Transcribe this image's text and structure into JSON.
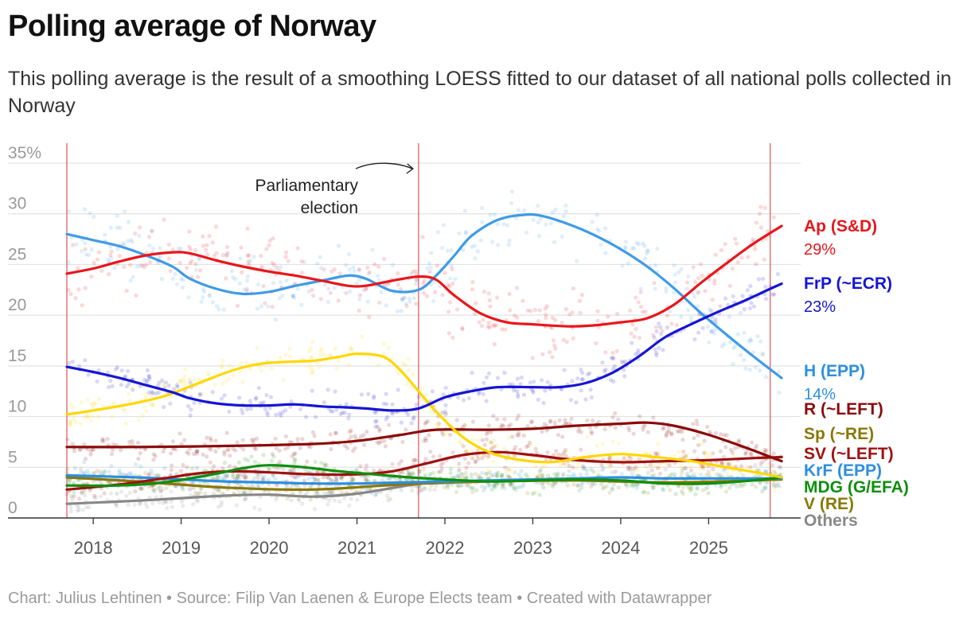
{
  "header": {
    "title": "Polling average of Norway",
    "subtitle": "This polling average is the result of a smoothing LOESS fitted to our dataset of all national polls collected in Norway"
  },
  "footer": {
    "text": "Chart: Julius Lehtinen • Source: Filip Van Laenen & Europe Elects team • Created with Datawrapper"
  },
  "chart_data": {
    "type": "line",
    "xlim": [
      2017.7,
      2025.92
    ],
    "ylim": [
      0,
      35
    ],
    "y_ticks": [
      0,
      5,
      10,
      15,
      20,
      25,
      30,
      35
    ],
    "y_tick_labels": [
      "0",
      "5",
      "10",
      "15",
      "20",
      "25",
      "30",
      "35%"
    ],
    "x_ticks": [
      2018,
      2019,
      2020,
      2021,
      2022,
      2023,
      2024,
      2025
    ],
    "x_tick_labels": [
      "2018",
      "2019",
      "2020",
      "2021",
      "2022",
      "2023",
      "2024",
      "2025"
    ],
    "grid": true,
    "vlines": [
      2017.7,
      2021.7,
      2025.7
    ],
    "annotation": {
      "lines": [
        "Parliamentary",
        "election"
      ],
      "x": 2021.7
    },
    "series": [
      {
        "name": "Ap (S&D)",
        "value_label": "29%",
        "color": "#e8161b",
        "x": [
          2017.7,
          2018.0,
          2018.3,
          2018.6,
          2018.9,
          2019.1,
          2019.4,
          2019.7,
          2020.0,
          2020.3,
          2020.6,
          2020.9,
          2021.1,
          2021.4,
          2021.7,
          2021.9,
          2022.1,
          2022.4,
          2022.7,
          2023.0,
          2023.4,
          2023.7,
          2024.0,
          2024.3,
          2024.6,
          2024.9,
          2025.2,
          2025.5,
          2025.83
        ],
        "y": [
          24.1,
          24.6,
          25.3,
          25.9,
          26.2,
          26.1,
          25.4,
          24.8,
          24.3,
          23.9,
          23.4,
          22.9,
          22.9,
          23.4,
          23.8,
          23.5,
          22.0,
          20.2,
          19.3,
          19.1,
          18.9,
          19.0,
          19.3,
          19.7,
          21.0,
          23.1,
          25.1,
          27.0,
          28.8
        ]
      },
      {
        "name": "FrP (~ECR)",
        "value_label": "23%",
        "color": "#1515d4",
        "x": [
          2017.7,
          2018.0,
          2018.3,
          2018.6,
          2018.9,
          2019.1,
          2019.4,
          2019.7,
          2020.0,
          2020.3,
          2020.6,
          2020.9,
          2021.1,
          2021.4,
          2021.7,
          2022.0,
          2022.3,
          2022.6,
          2023.0,
          2023.3,
          2023.6,
          2023.9,
          2024.2,
          2024.5,
          2024.8,
          2025.1,
          2025.4,
          2025.7,
          2025.83
        ],
        "y": [
          14.9,
          14.4,
          13.8,
          13.1,
          12.4,
          11.8,
          11.3,
          11.1,
          11.1,
          11.2,
          11.0,
          10.9,
          10.8,
          10.6,
          10.8,
          11.9,
          12.5,
          12.9,
          12.9,
          12.9,
          13.3,
          14.3,
          15.9,
          17.8,
          19.1,
          20.3,
          21.4,
          22.6,
          23.1
        ]
      },
      {
        "name": "H (EPP)",
        "value_label": "14%",
        "color": "#3f9be8",
        "x": [
          2017.7,
          2018.0,
          2018.3,
          2018.6,
          2018.9,
          2019.1,
          2019.4,
          2019.7,
          2020.0,
          2020.3,
          2020.6,
          2020.9,
          2021.1,
          2021.4,
          2021.7,
          2021.9,
          2022.1,
          2022.3,
          2022.6,
          2022.9,
          2023.1,
          2023.4,
          2023.7,
          2024.0,
          2024.3,
          2024.6,
          2024.9,
          2025.2,
          2025.5,
          2025.83
        ],
        "y": [
          28.0,
          27.4,
          26.8,
          25.9,
          24.8,
          23.6,
          22.6,
          22.1,
          22.3,
          22.9,
          23.4,
          23.9,
          23.6,
          22.4,
          22.5,
          23.9,
          25.8,
          27.8,
          29.4,
          29.9,
          29.8,
          29.0,
          27.9,
          26.5,
          24.8,
          22.7,
          20.3,
          18.1,
          16.0,
          13.8
        ]
      },
      {
        "name": "R (~LEFT)",
        "value_label": "",
        "color": "#8b0a0a",
        "x": [
          2017.7,
          2018.5,
          2019.5,
          2020.5,
          2021.0,
          2021.5,
          2021.9,
          2022.5,
          2023.0,
          2023.5,
          2024.0,
          2024.3,
          2024.6,
          2025.0,
          2025.4,
          2025.83
        ],
        "y": [
          7.0,
          7.0,
          7.1,
          7.3,
          7.6,
          8.2,
          8.7,
          8.7,
          8.8,
          9.1,
          9.3,
          9.4,
          9.1,
          8.2,
          7.0,
          5.6
        ]
      },
      {
        "name": "Sp (~RE)",
        "value_label": "",
        "color": "#ffd700",
        "x": [
          2017.7,
          2018.0,
          2018.4,
          2018.8,
          2019.2,
          2019.6,
          2019.9,
          2020.2,
          2020.5,
          2020.8,
          2021.0,
          2021.3,
          2021.5,
          2021.7,
          2021.9,
          2022.2,
          2022.5,
          2022.8,
          2023.2,
          2023.6,
          2024.0,
          2024.4,
          2024.8,
          2025.2,
          2025.6,
          2025.83
        ],
        "y": [
          10.2,
          10.6,
          11.2,
          12.0,
          13.3,
          14.6,
          15.2,
          15.4,
          15.5,
          15.9,
          16.2,
          15.9,
          14.5,
          12.5,
          10.5,
          8.0,
          6.5,
          5.8,
          5.5,
          6.0,
          6.3,
          6.0,
          5.6,
          5.0,
          4.4,
          4.0
        ]
      },
      {
        "name": "SV (~LEFT)",
        "value_label": "",
        "color": "#a01010",
        "x": [
          2017.7,
          2018.3,
          2018.8,
          2019.2,
          2019.6,
          2020.0,
          2020.5,
          2021.0,
          2021.4,
          2021.8,
          2022.2,
          2022.6,
          2023.0,
          2023.5,
          2024.0,
          2024.5,
          2025.0,
          2025.5,
          2025.83
        ],
        "y": [
          2.8,
          3.3,
          3.9,
          4.4,
          4.6,
          4.5,
          4.3,
          4.3,
          4.6,
          5.4,
          6.2,
          6.5,
          6.2,
          5.7,
          5.5,
          5.6,
          5.7,
          5.9,
          6.0
        ]
      },
      {
        "name": "KrF (EPP)",
        "value_label": "",
        "color": "#2b8fe0",
        "x": [
          2017.7,
          2018.5,
          2019.0,
          2019.5,
          2020.0,
          2020.5,
          2021.0,
          2021.5,
          2022.0,
          2022.5,
          2023.0,
          2023.5,
          2024.0,
          2024.5,
          2025.0,
          2025.5,
          2025.83
        ],
        "y": [
          4.2,
          4.0,
          3.8,
          3.6,
          3.5,
          3.4,
          3.4,
          3.5,
          3.6,
          3.7,
          3.8,
          3.9,
          4.0,
          3.9,
          3.9,
          3.9,
          3.9
        ]
      },
      {
        "name": "MDG (G/EFA)",
        "value_label": "",
        "color": "#0e8e0e",
        "x": [
          2017.7,
          2018.3,
          2018.8,
          2019.3,
          2019.7,
          2020.0,
          2020.4,
          2020.8,
          2021.2,
          2021.6,
          2022.0,
          2022.5,
          2023.0,
          2023.5,
          2024.0,
          2024.5,
          2025.0,
          2025.5,
          2025.83
        ],
        "y": [
          3.2,
          3.2,
          3.5,
          4.2,
          4.9,
          5.2,
          5.0,
          4.6,
          4.3,
          4.0,
          3.8,
          3.6,
          3.7,
          3.8,
          3.7,
          3.4,
          3.4,
          3.7,
          4.0
        ]
      },
      {
        "name": "V (RE)",
        "value_label": "",
        "color": "#8a7808",
        "x": [
          2017.7,
          2018.5,
          2019.5,
          2020.5,
          2021.5,
          2022.5,
          2023.5,
          2024.5,
          2025.5,
          2025.83
        ],
        "y": [
          4.0,
          3.6,
          3.0,
          2.8,
          3.3,
          3.6,
          3.7,
          3.5,
          3.7,
          3.8
        ]
      },
      {
        "name": "Others",
        "value_label": "",
        "color": "#888888",
        "x": [
          2017.7,
          2018.5,
          2019.5,
          2020.0,
          2020.5,
          2021.0,
          2021.5,
          2021.9
        ],
        "y": [
          1.4,
          1.7,
          2.2,
          2.3,
          2.1,
          2.4,
          3.1,
          3.6
        ]
      }
    ]
  }
}
